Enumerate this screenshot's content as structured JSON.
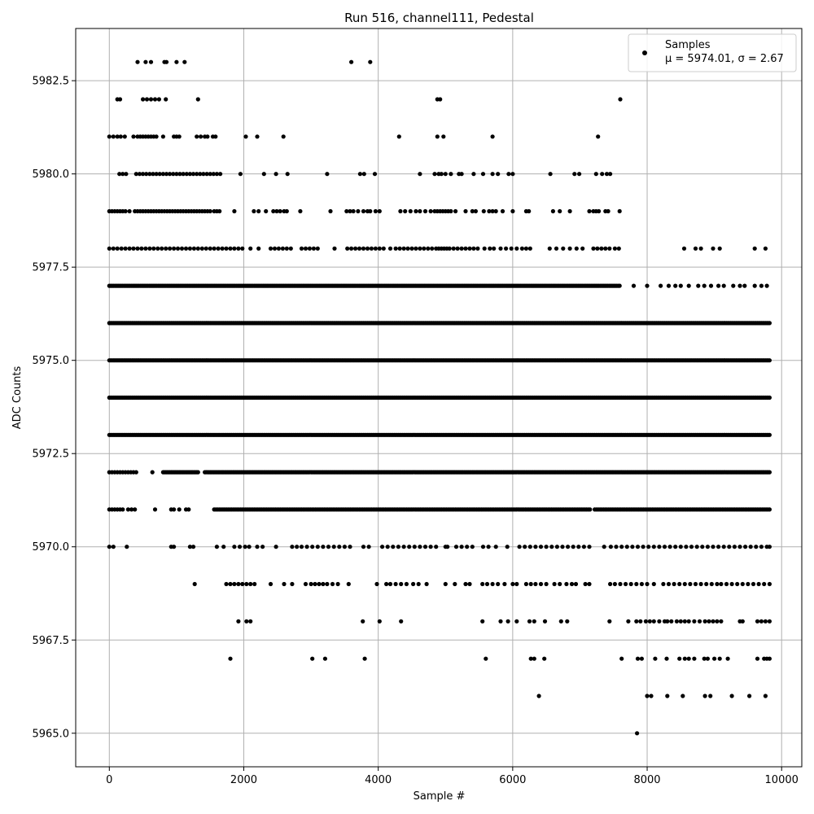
{
  "chart_data": {
    "type": "scatter",
    "title": "Run 516, channel111, Pedestal",
    "xlabel": "Sample #",
    "ylabel": "ADC Counts",
    "xlim": [
      -500,
      10300
    ],
    "ylim": [
      5964.1,
      5983.9
    ],
    "xticks": [
      0,
      2000,
      4000,
      6000,
      8000,
      10000
    ],
    "xtick_labels": [
      "0",
      "2000",
      "4000",
      "6000",
      "8000",
      "10000"
    ],
    "yticks": [
      5965.0,
      5967.5,
      5970.0,
      5972.5,
      5975.0,
      5977.5,
      5980.0,
      5982.5
    ],
    "ytick_labels": [
      "5965.0",
      "5967.5",
      "5970.0",
      "5972.5",
      "5975.0",
      "5977.5",
      "5980.0",
      "5982.5"
    ],
    "grid": true,
    "legend_position": "top-right",
    "marker_color": "#000000",
    "series": [
      {
        "name": "Samples",
        "annotation": "μ = 5974.01, σ = 2.67",
        "points_by_level": [
          {
            "y": 5983,
            "x": [
              420,
              540,
              620,
              820,
              850,
              1000,
              1120,
              3600,
              3880
            ]
          },
          {
            "y": 5982,
            "x": [
              120,
              160,
              500,
              560,
              620,
              680,
              740,
              840,
              1320,
              4880,
              4920,
              7600
            ]
          },
          {
            "y": 5981,
            "x": [
              0,
              60,
              120,
              170,
              230,
              360,
              420,
              460,
              500,
              540,
              580,
              620,
              660,
              700,
              800,
              960,
              1000,
              1040,
              1300,
              1360,
              1420,
              1460,
              1540,
              1580,
              2030,
              2200,
              2590,
              4310,
              4880,
              4970,
              5700,
              7270
            ]
          },
          {
            "y": 5980,
            "x": [
              150,
              200,
              250,
              400,
              450,
              500,
              550,
              600,
              650,
              700,
              750,
              800,
              850,
              900,
              950,
              1000,
              1050,
              1100,
              1150,
              1200,
              1250,
              1300,
              1350,
              1400,
              1450,
              1500,
              1550,
              1600,
              1650,
              1950,
              2300,
              2480,
              2650,
              3240,
              3730,
              3790,
              3950,
              4620,
              4840,
              4900,
              4940,
              5000,
              5080,
              5200,
              5240,
              5420,
              5560,
              5700,
              5780,
              5940,
              6000,
              6560,
              6920,
              6990,
              7240,
              7330,
              7400,
              7450
            ]
          },
          {
            "y": 5979,
            "x": [
              0,
              40,
              80,
              120,
              160,
              200,
              240,
              300,
              380,
              420,
              460,
              500,
              540,
              580,
              620,
              660,
              700,
              740,
              780,
              820,
              860,
              900,
              940,
              980,
              1020,
              1060,
              1100,
              1140,
              1180,
              1220,
              1260,
              1300,
              1340,
              1380,
              1420,
              1460,
              1500,
              1560,
              1600,
              1640,
              1860,
              2150,
              2220,
              2330,
              2440,
              2490,
              2540,
              2600,
              2640,
              2840,
              3290,
              3530,
              3580,
              3630,
              3700,
              3780,
              3840,
              3880,
              3960,
              4020,
              4330,
              4400,
              4480,
              4560,
              4620,
              4700,
              4780,
              4840,
              4880,
              4920,
              4960,
              5000,
              5040,
              5080,
              5150,
              5300,
              5400,
              5450,
              5570,
              5650,
              5700,
              5750,
              5850,
              6000,
              6200,
              6240,
              6600,
              6700,
              6850,
              7140,
              7200,
              7240,
              7280,
              7380,
              7420,
              7590
            ]
          },
          {
            "y": 5978,
            "x": [
              0,
              60,
              120,
              180,
              240,
              300,
              360,
              420,
              480,
              540,
              600,
              660,
              720,
              780,
              840,
              900,
              960,
              1020,
              1080,
              1140,
              1200,
              1260,
              1320,
              1380,
              1440,
              1500,
              1560,
              1620,
              1680,
              1740,
              1800,
              1860,
              1920,
              1980,
              2100,
              2220,
              2400,
              2460,
              2520,
              2580,
              2640,
              2700,
              2860,
              2920,
              2980,
              3040,
              3100,
              3350,
              3540,
              3600,
              3660,
              3720,
              3780,
              3840,
              3900,
              3960,
              4020,
              4080,
              4180,
              4260,
              4320,
              4380,
              4440,
              4500,
              4560,
              4620,
              4680,
              4740,
              4800,
              4860,
              4900,
              4940,
              4980,
              5020,
              5060,
              5120,
              5180,
              5240,
              5300,
              5360,
              5420,
              5480,
              5580,
              5660,
              5720,
              5820,
              5900,
              5980,
              6060,
              6140,
              6200,
              6260,
              6550,
              6650,
              6750,
              6850,
              6950,
              7040,
              7200,
              7260,
              7320,
              7380,
              7440,
              7520,
              7580,
              8550,
              8720,
              8800,
              8980,
              9080,
              9600,
              9760
            ]
          },
          {
            "y": 5977,
            "x_range": [
              0,
              7600
            ],
            "step": 22,
            "extra_x": [
              7800,
              8000,
              8200,
              8320,
              8420,
              8500,
              8620,
              8760,
              8850,
              8950,
              9060,
              9140,
              9280,
              9380,
              9450,
              9600,
              9700,
              9780
            ]
          },
          {
            "y": 5976,
            "x_range": [
              0,
              9820
            ],
            "step": 20
          },
          {
            "y": 5975,
            "x_range": [
              0,
              9820
            ],
            "step": 20
          },
          {
            "y": 5974,
            "x_range": [
              0,
              9820
            ],
            "step": 20
          },
          {
            "y": 5973,
            "x_range": [
              0,
              9820
            ],
            "step": 20
          },
          {
            "y": 5972,
            "x_range": [
              0,
              420
            ],
            "step": 40,
            "extra_range": [
              [
                800,
                1320
              ],
              [
                1420,
                9820
              ]
            ],
            "extra_step": 20,
            "extra_x": [
              640
            ]
          },
          {
            "y": 5971,
            "x": [
              0,
              40,
              80,
              120,
              160,
              200,
              280,
              330,
              380,
              680,
              920,
              960,
              1040,
              1140,
              1180
            ],
            "extra_range": [
              [
                1560,
                7160
              ],
              [
                7220,
                9820
              ]
            ],
            "extra_step": 26
          },
          {
            "y": 5970,
            "x": [
              0,
              60,
              260,
              920,
              960,
              1200,
              1250,
              1600,
              1700,
              1860,
              1940,
              2020,
              2080,
              2200,
              2280,
              2480,
              2720,
              2790,
              2860,
              2940,
              3020,
              3100,
              3180,
              3260,
              3340,
              3420,
              3500,
              3580,
              3780,
              3860,
              4060,
              4140,
              4220,
              4300,
              4380,
              4460,
              4540,
              4620,
              4700,
              4780,
              4860,
              5000,
              5030,
              5160,
              5240,
              5320,
              5400,
              5560,
              5640,
              5750,
              5920,
              6100,
              6180,
              6260,
              6340,
              6420,
              6500,
              6580,
              6660,
              6740,
              6820,
              6900,
              6980,
              7060,
              7140,
              7360,
              7460,
              7540,
              7620,
              7700,
              7780,
              7860,
              7940,
              8020,
              8100,
              8180,
              8260,
              8340,
              8420,
              8500,
              8580,
              8660,
              8740,
              8820,
              8900,
              8980,
              9060,
              9140,
              9220,
              9300,
              9380,
              9460,
              9540,
              9620,
              9700,
              9780,
              9820
            ]
          },
          {
            "y": 5969,
            "x": [
              1270,
              1740,
              1800,
              1860,
              1920,
              1980,
              2040,
              2100,
              2160,
              2400,
              2600,
              2720,
              2920,
              3000,
              3060,
              3120,
              3180,
              3240,
              3320,
              3400,
              3560,
              3980,
              4120,
              4180,
              4260,
              4340,
              4420,
              4520,
              4600,
              4720,
              5000,
              5140,
              5300,
              5360,
              5550,
              5620,
              5700,
              5780,
              5880,
              6000,
              6060,
              6200,
              6270,
              6340,
              6420,
              6500,
              6620,
              6700,
              6800,
              6880,
              6940,
              7080,
              7140,
              7450,
              7520,
              7600,
              7680,
              7760,
              7840,
              7920,
              8000,
              8100,
              8240,
              8320,
              8400,
              8480,
              8560,
              8640,
              8720,
              8800,
              8880,
              8960,
              9040,
              9100,
              9180,
              9260,
              9340,
              9420,
              9500,
              9580,
              9660,
              9740,
              9820
            ]
          },
          {
            "y": 5968,
            "x": [
              1920,
              2040,
              2100,
              3770,
              4020,
              4340,
              5550,
              5820,
              5930,
              6060,
              6250,
              6320,
              6480,
              6720,
              6810,
              7440,
              7720,
              7840,
              7900,
              7980,
              8040,
              8100,
              8180,
              8260,
              8300,
              8360,
              8440,
              8500,
              8560,
              8620,
              8700,
              8780,
              8860,
              8920,
              8980,
              9040,
              9100,
              9380,
              9420,
              9640,
              9700,
              9760,
              9820
            ]
          },
          {
            "y": 5967,
            "x": [
              1800,
              3020,
              3210,
              3800,
              5600,
              6270,
              6320,
              6470,
              7620,
              7860,
              7920,
              8120,
              8290,
              8480,
              8560,
              8620,
              8700,
              8850,
              8900,
              9000,
              9080,
              9200,
              9640,
              9740,
              9780,
              9820
            ]
          },
          {
            "y": 5966,
            "x": [
              6390,
              8000,
              8060,
              8300,
              8530,
              8860,
              8940,
              9260,
              9520,
              9760
            ]
          },
          {
            "y": 5965,
            "x": [
              7850
            ]
          }
        ]
      }
    ]
  }
}
